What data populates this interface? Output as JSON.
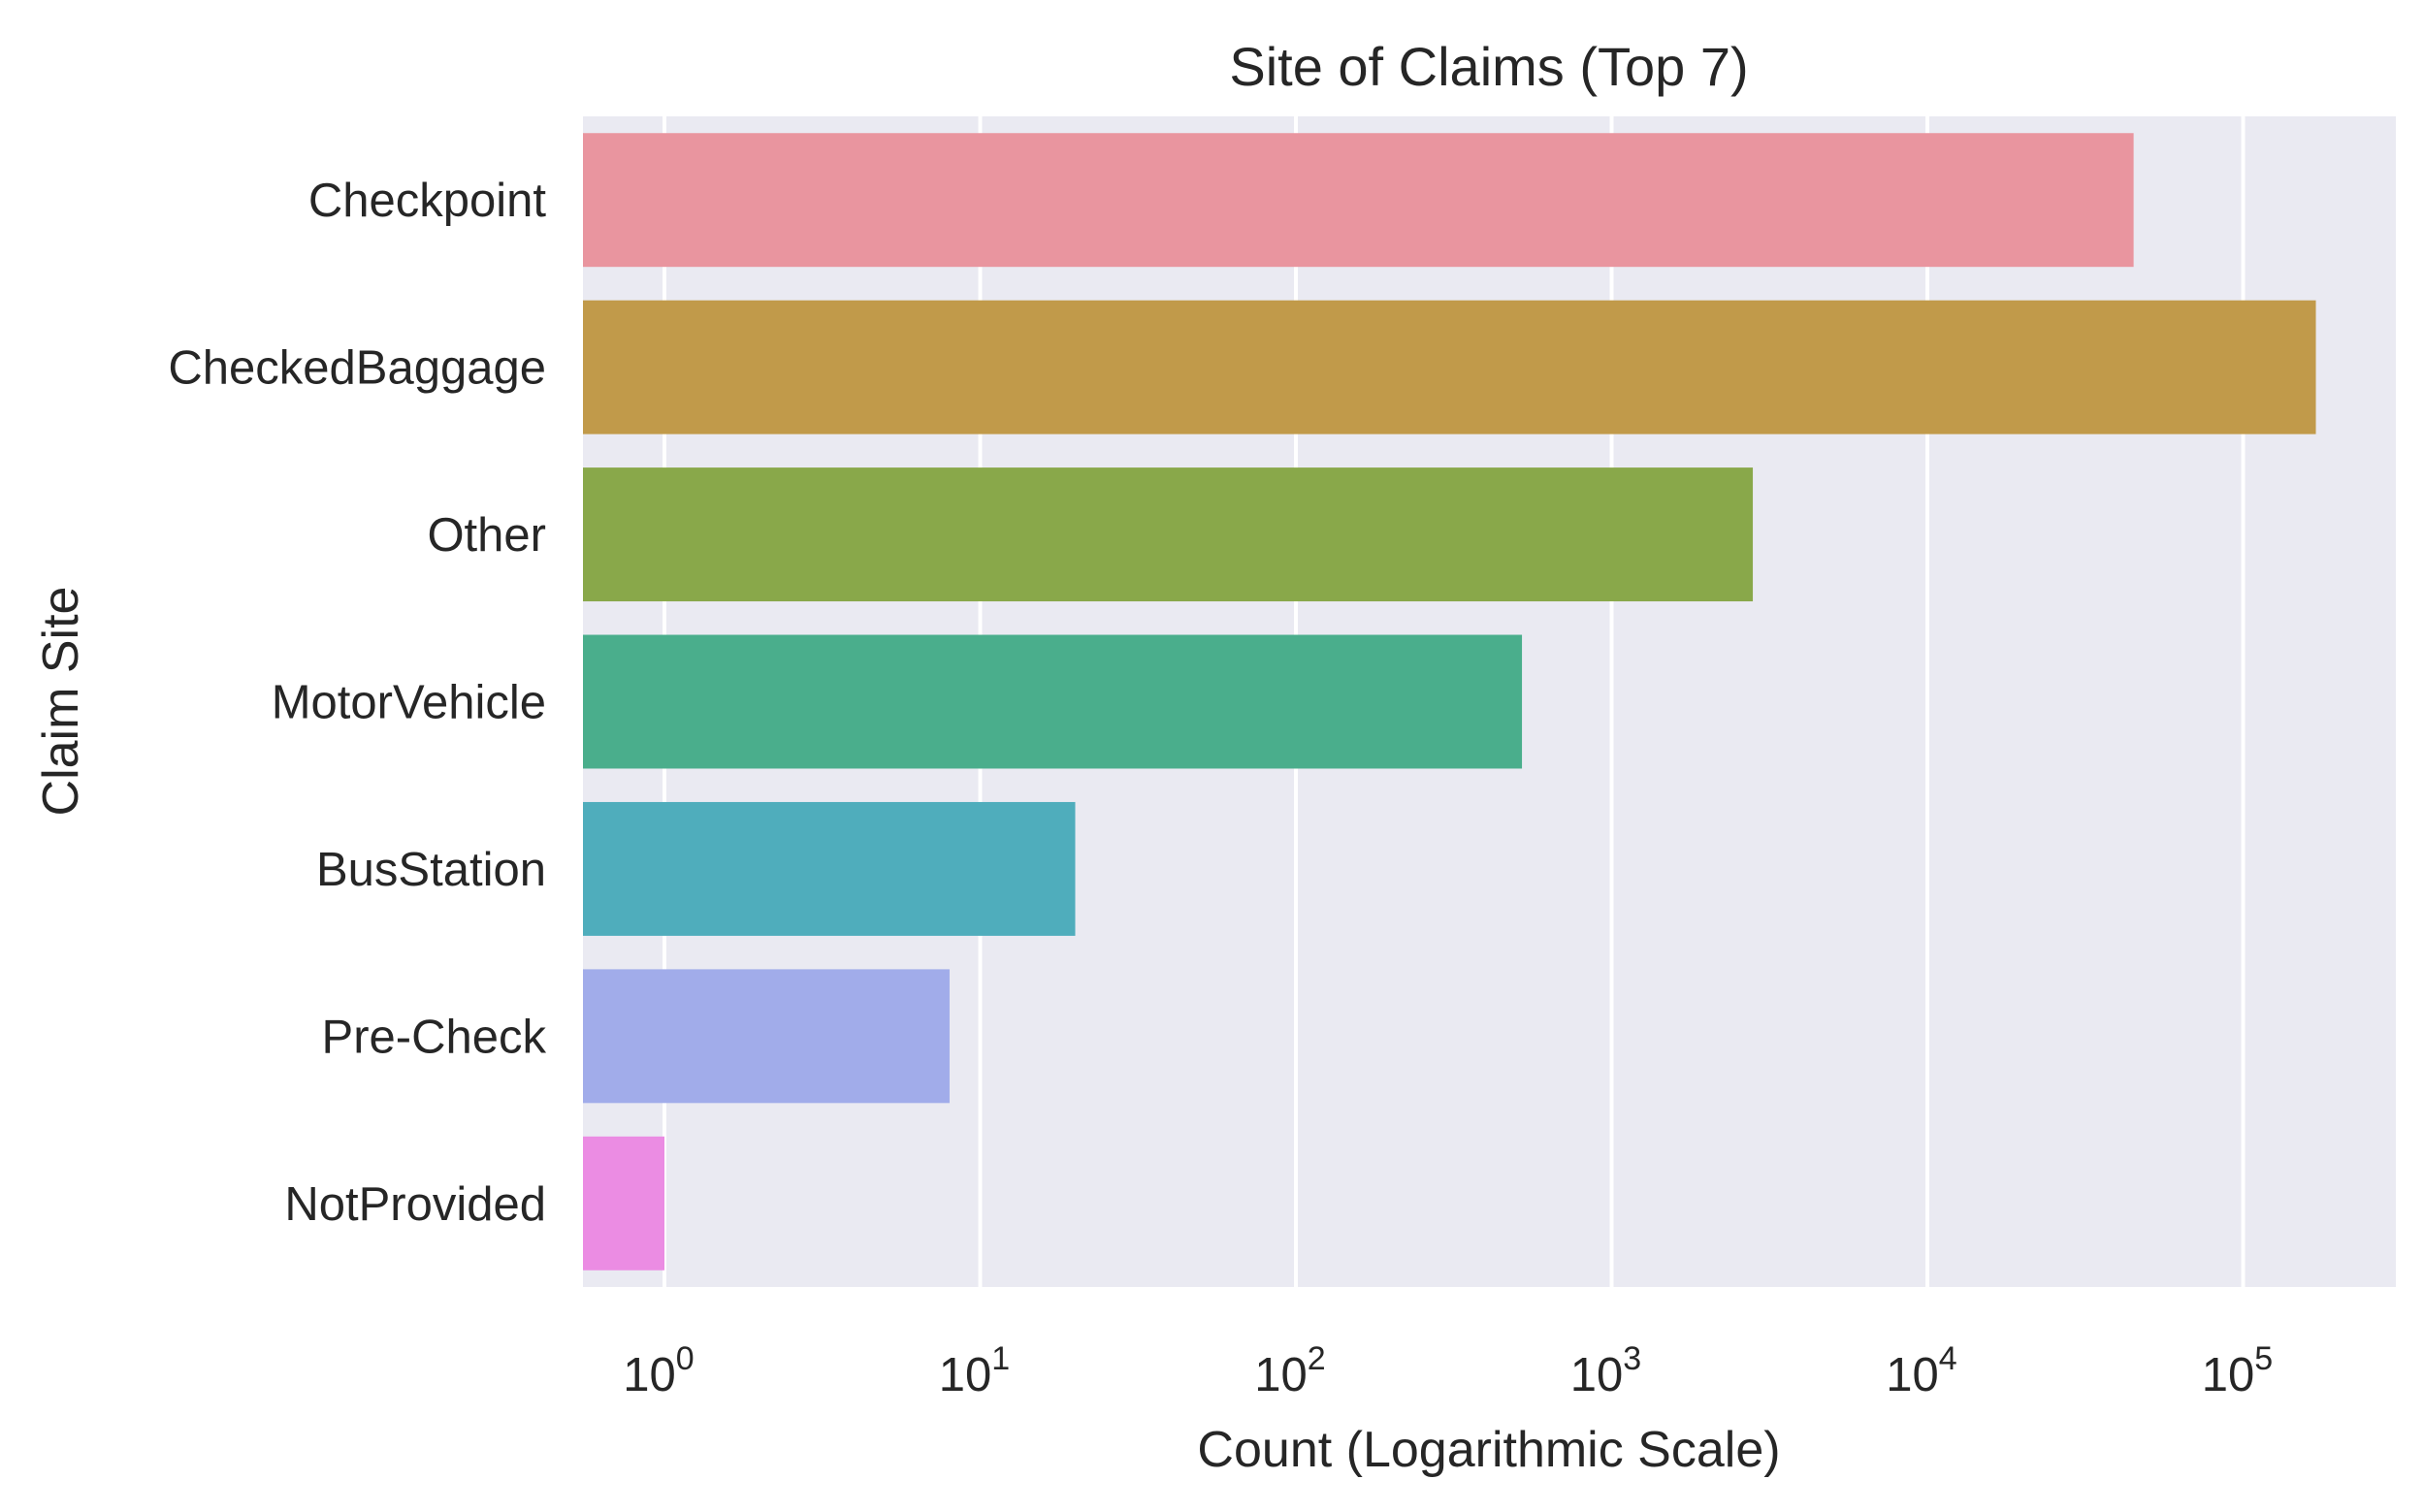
{
  "chart_data": {
    "type": "bar",
    "orientation": "horizontal",
    "title": "Site of Claims (Top 7)",
    "xlabel": "Count (Logarithmic Scale)",
    "ylabel": "Claim Site",
    "xscale": "log",
    "xlim": [
      0.54,
      330000
    ],
    "xticks": [
      {
        "base": "10",
        "exp": "0",
        "value": 1
      },
      {
        "base": "10",
        "exp": "1",
        "value": 10
      },
      {
        "base": "10",
        "exp": "2",
        "value": 100
      },
      {
        "base": "10",
        "exp": "3",
        "value": 1000
      },
      {
        "base": "10",
        "exp": "4",
        "value": 10000
      },
      {
        "base": "10",
        "exp": "5",
        "value": 100000
      }
    ],
    "categories": [
      "Checkpoint",
      "CheckedBaggage",
      "Other",
      "MotorVehicle",
      "BusStation",
      "Pre-Check",
      "NotProvided"
    ],
    "values": [
      45000,
      170000,
      2800,
      520,
      20,
      8,
      1
    ],
    "colors": [
      "#e9959f",
      "#c19a4a",
      "#89a84a",
      "#4aae8c",
      "#4fadbc",
      "#a1acea",
      "#eb8ce3"
    ],
    "background": "#eaeaf2",
    "grid": true,
    "legend": null
  }
}
